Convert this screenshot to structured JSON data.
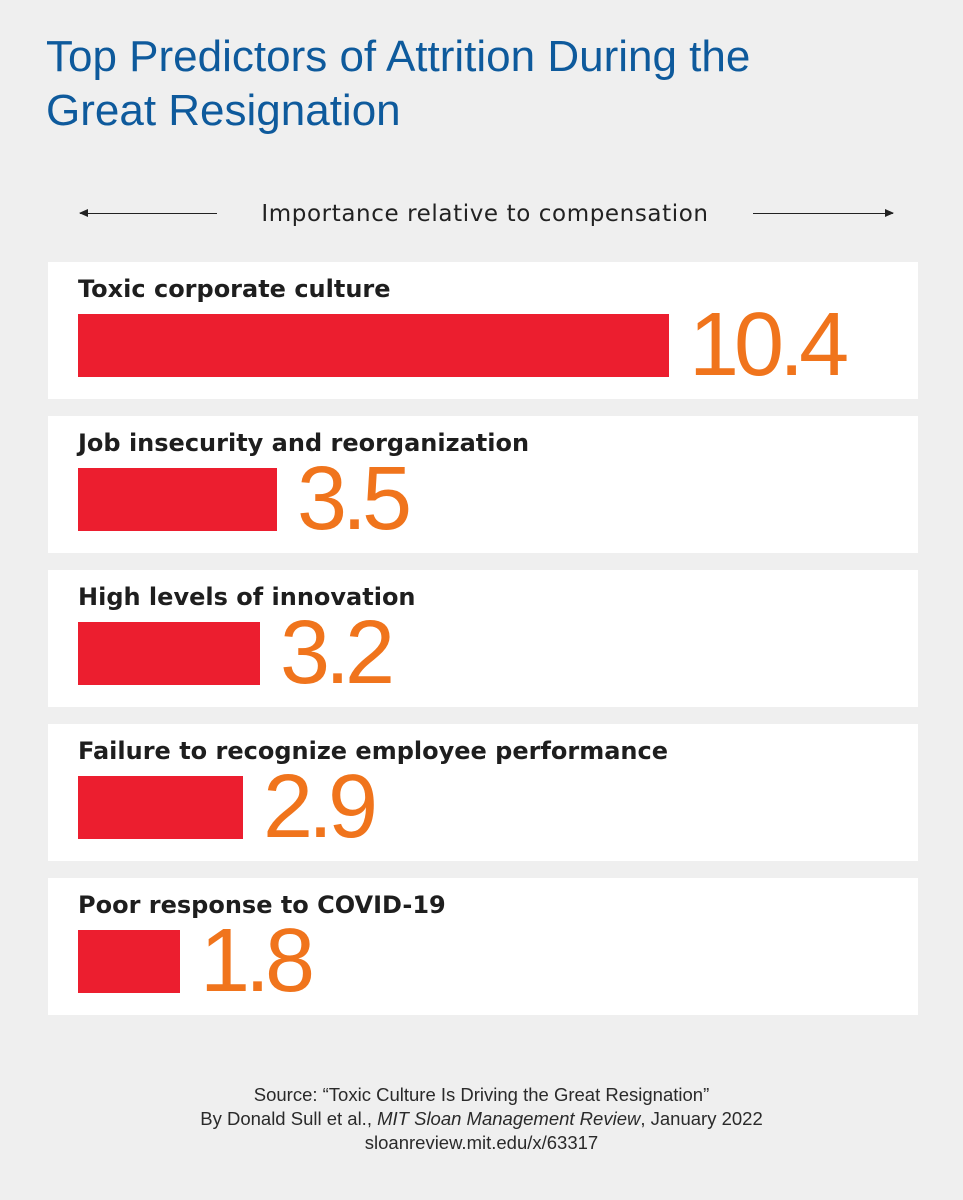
{
  "title_lines": [
    "Top Predictors of Attrition During the",
    "Great Resignation"
  ],
  "colors": {
    "background": "#efefef",
    "title": "#0e5a9c",
    "bar": "#ec1e2f",
    "value": "#f0741c",
    "card": "#ffffff"
  },
  "chart_data": {
    "type": "bar",
    "orientation": "horizontal",
    "title": "Top Predictors of Attrition During the Great Resignation",
    "xlabel": "Importance relative to compensation",
    "ylabel": "",
    "xlim": [
      0,
      10.4
    ],
    "grid": false,
    "legend": "none",
    "categories": [
      "Toxic corporate culture",
      "Job insecurity and reorganization",
      "High levels of innovation",
      "Failure to recognize employee performance",
      "Poor response to COVID-19"
    ],
    "values": [
      10.4,
      3.5,
      3.2,
      2.9,
      1.8
    ],
    "value_labels": [
      "10.4",
      "3.5",
      "3.2",
      "2.9",
      "1.8"
    ]
  },
  "source": {
    "line1": "Source: “Toxic Culture Is Driving the Great Resignation”",
    "line2_prefix": "By Donald Sull et al., ",
    "line2_publication": "MIT Sloan Management Review",
    "line2_suffix": ", January 2022",
    "line3": "sloanreview.mit.edu/x/63317"
  }
}
